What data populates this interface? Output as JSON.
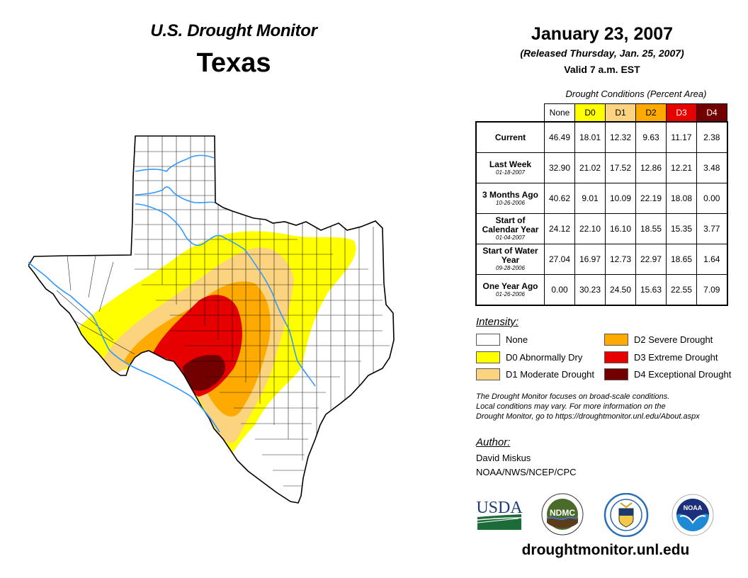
{
  "header": {
    "title": "U.S. Drought Monitor",
    "region": "Texas",
    "date": "January 23, 2007",
    "released": "(Released Thursday, Jan. 25, 2007)",
    "valid": "Valid 7 a.m. EST"
  },
  "table": {
    "caption": "Drought Conditions (Percent Area)",
    "columns": [
      {
        "label": "None",
        "color": "#ffffff",
        "text_color": "#000000"
      },
      {
        "label": "D0",
        "color": "#ffff00",
        "text_color": "#000000"
      },
      {
        "label": "D1",
        "color": "#fcd37f",
        "text_color": "#000000"
      },
      {
        "label": "D2",
        "color": "#ffaa00",
        "text_color": "#000000"
      },
      {
        "label": "D3",
        "color": "#e60000",
        "text_color": "#ffffff"
      },
      {
        "label": "D4",
        "color": "#730000",
        "text_color": "#ffffff"
      }
    ],
    "rows": [
      {
        "label": "Current",
        "date": "",
        "values": [
          "46.49",
          "18.01",
          "12.32",
          "9.63",
          "11.17",
          "2.38"
        ]
      },
      {
        "label": "Last Week",
        "date": "01-18-2007",
        "values": [
          "32.90",
          "21.02",
          "17.52",
          "12.86",
          "12.21",
          "3.48"
        ]
      },
      {
        "label": "3 Months Ago",
        "date": "10-26-2006",
        "values": [
          "40.62",
          "9.01",
          "10.09",
          "22.19",
          "18.08",
          "0.00"
        ]
      },
      {
        "label": "Start of Calendar Year",
        "date": "01-04-2007",
        "values": [
          "24.12",
          "22.10",
          "16.10",
          "18.55",
          "15.35",
          "3.77"
        ]
      },
      {
        "label": "Start of Water Year",
        "date": "09-28-2006",
        "values": [
          "27.04",
          "16.97",
          "12.73",
          "22.97",
          "18.65",
          "1.64"
        ]
      },
      {
        "label": "One Year Ago",
        "date": "01-26-2006",
        "values": [
          "0.00",
          "30.23",
          "24.50",
          "15.63",
          "22.55",
          "7.09"
        ]
      }
    ]
  },
  "legend": {
    "title": "Intensity:",
    "items": [
      {
        "label": "None",
        "color": "#ffffff"
      },
      {
        "label": "D0 Abnormally Dry",
        "color": "#ffff00"
      },
      {
        "label": "D1 Moderate Drought",
        "color": "#fcd37f"
      },
      {
        "label": "D2 Severe Drought",
        "color": "#ffaa00"
      },
      {
        "label": "D3 Extreme Drought",
        "color": "#e60000"
      },
      {
        "label": "D4 Exceptional Drought",
        "color": "#730000"
      }
    ]
  },
  "note": {
    "line1": "The Drought Monitor focuses on broad-scale conditions.",
    "line2": "Local conditions may vary. For more information on the",
    "line3": "Drought Monitor, go to https://droughtmonitor.unl.edu/About.aspx"
  },
  "author": {
    "title": "Author:",
    "name": "David Miskus",
    "org": "NOAA/NWS/NCEP/CPC"
  },
  "logos": {
    "usda": "USDA",
    "ndmc": "NDMC",
    "noaa": "NOAA"
  },
  "footer_url": "droughtmonitor.unl.edu"
}
